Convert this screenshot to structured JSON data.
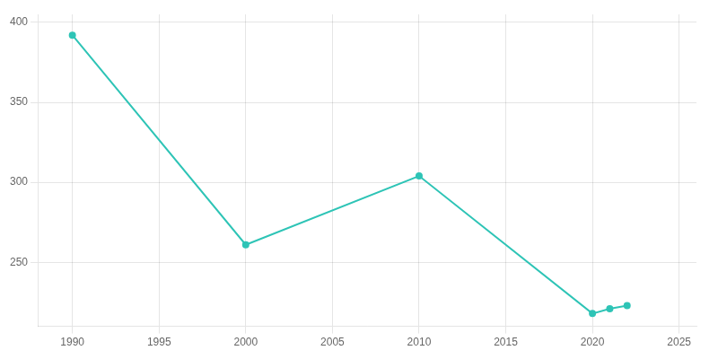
{
  "chart_data": {
    "type": "line",
    "x": [
      1990,
      2000,
      2010,
      2020,
      2021,
      2022
    ],
    "values": [
      392,
      261,
      304,
      218,
      221,
      223
    ],
    "color": "#2EC4B6",
    "marker": "o",
    "line_style": "solid",
    "xlim": [
      1988,
      2026
    ],
    "ylim": [
      210,
      405
    ],
    "xticks": [
      1990,
      1995,
      2000,
      2005,
      2010,
      2015,
      2020,
      2025
    ],
    "yticks": [
      250,
      300,
      350,
      400
    ],
    "grid": true
  }
}
